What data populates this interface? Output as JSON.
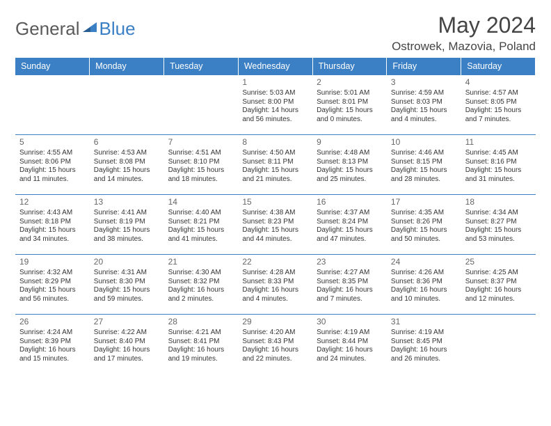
{
  "logo": {
    "word1": "General",
    "word2": "Blue"
  },
  "title": "May 2024",
  "location": "Ostrowek, Mazovia, Poland",
  "colors": {
    "header_bg": "#3b7fc4",
    "header_text": "#ffffff",
    "rule": "#3b7fc4",
    "body_text": "#333333",
    "title_text": "#444444",
    "logo_gray": "#5a5a5a",
    "logo_blue": "#3b7fc4",
    "background": "#ffffff"
  },
  "weekdays": [
    "Sunday",
    "Monday",
    "Tuesday",
    "Wednesday",
    "Thursday",
    "Friday",
    "Saturday"
  ],
  "weeks": [
    [
      null,
      null,
      null,
      {
        "day": "1",
        "sunrise": "Sunrise: 5:03 AM",
        "sunset": "Sunset: 8:00 PM",
        "daylight": "Daylight: 14 hours and 56 minutes."
      },
      {
        "day": "2",
        "sunrise": "Sunrise: 5:01 AM",
        "sunset": "Sunset: 8:01 PM",
        "daylight": "Daylight: 15 hours and 0 minutes."
      },
      {
        "day": "3",
        "sunrise": "Sunrise: 4:59 AM",
        "sunset": "Sunset: 8:03 PM",
        "daylight": "Daylight: 15 hours and 4 minutes."
      },
      {
        "day": "4",
        "sunrise": "Sunrise: 4:57 AM",
        "sunset": "Sunset: 8:05 PM",
        "daylight": "Daylight: 15 hours and 7 minutes."
      }
    ],
    [
      {
        "day": "5",
        "sunrise": "Sunrise: 4:55 AM",
        "sunset": "Sunset: 8:06 PM",
        "daylight": "Daylight: 15 hours and 11 minutes."
      },
      {
        "day": "6",
        "sunrise": "Sunrise: 4:53 AM",
        "sunset": "Sunset: 8:08 PM",
        "daylight": "Daylight: 15 hours and 14 minutes."
      },
      {
        "day": "7",
        "sunrise": "Sunrise: 4:51 AM",
        "sunset": "Sunset: 8:10 PM",
        "daylight": "Daylight: 15 hours and 18 minutes."
      },
      {
        "day": "8",
        "sunrise": "Sunrise: 4:50 AM",
        "sunset": "Sunset: 8:11 PM",
        "daylight": "Daylight: 15 hours and 21 minutes."
      },
      {
        "day": "9",
        "sunrise": "Sunrise: 4:48 AM",
        "sunset": "Sunset: 8:13 PM",
        "daylight": "Daylight: 15 hours and 25 minutes."
      },
      {
        "day": "10",
        "sunrise": "Sunrise: 4:46 AM",
        "sunset": "Sunset: 8:15 PM",
        "daylight": "Daylight: 15 hours and 28 minutes."
      },
      {
        "day": "11",
        "sunrise": "Sunrise: 4:45 AM",
        "sunset": "Sunset: 8:16 PM",
        "daylight": "Daylight: 15 hours and 31 minutes."
      }
    ],
    [
      {
        "day": "12",
        "sunrise": "Sunrise: 4:43 AM",
        "sunset": "Sunset: 8:18 PM",
        "daylight": "Daylight: 15 hours and 34 minutes."
      },
      {
        "day": "13",
        "sunrise": "Sunrise: 4:41 AM",
        "sunset": "Sunset: 8:19 PM",
        "daylight": "Daylight: 15 hours and 38 minutes."
      },
      {
        "day": "14",
        "sunrise": "Sunrise: 4:40 AM",
        "sunset": "Sunset: 8:21 PM",
        "daylight": "Daylight: 15 hours and 41 minutes."
      },
      {
        "day": "15",
        "sunrise": "Sunrise: 4:38 AM",
        "sunset": "Sunset: 8:23 PM",
        "daylight": "Daylight: 15 hours and 44 minutes."
      },
      {
        "day": "16",
        "sunrise": "Sunrise: 4:37 AM",
        "sunset": "Sunset: 8:24 PM",
        "daylight": "Daylight: 15 hours and 47 minutes."
      },
      {
        "day": "17",
        "sunrise": "Sunrise: 4:35 AM",
        "sunset": "Sunset: 8:26 PM",
        "daylight": "Daylight: 15 hours and 50 minutes."
      },
      {
        "day": "18",
        "sunrise": "Sunrise: 4:34 AM",
        "sunset": "Sunset: 8:27 PM",
        "daylight": "Daylight: 15 hours and 53 minutes."
      }
    ],
    [
      {
        "day": "19",
        "sunrise": "Sunrise: 4:32 AM",
        "sunset": "Sunset: 8:29 PM",
        "daylight": "Daylight: 15 hours and 56 minutes."
      },
      {
        "day": "20",
        "sunrise": "Sunrise: 4:31 AM",
        "sunset": "Sunset: 8:30 PM",
        "daylight": "Daylight: 15 hours and 59 minutes."
      },
      {
        "day": "21",
        "sunrise": "Sunrise: 4:30 AM",
        "sunset": "Sunset: 8:32 PM",
        "daylight": "Daylight: 16 hours and 2 minutes."
      },
      {
        "day": "22",
        "sunrise": "Sunrise: 4:28 AM",
        "sunset": "Sunset: 8:33 PM",
        "daylight": "Daylight: 16 hours and 4 minutes."
      },
      {
        "day": "23",
        "sunrise": "Sunrise: 4:27 AM",
        "sunset": "Sunset: 8:35 PM",
        "daylight": "Daylight: 16 hours and 7 minutes."
      },
      {
        "day": "24",
        "sunrise": "Sunrise: 4:26 AM",
        "sunset": "Sunset: 8:36 PM",
        "daylight": "Daylight: 16 hours and 10 minutes."
      },
      {
        "day": "25",
        "sunrise": "Sunrise: 4:25 AM",
        "sunset": "Sunset: 8:37 PM",
        "daylight": "Daylight: 16 hours and 12 minutes."
      }
    ],
    [
      {
        "day": "26",
        "sunrise": "Sunrise: 4:24 AM",
        "sunset": "Sunset: 8:39 PM",
        "daylight": "Daylight: 16 hours and 15 minutes."
      },
      {
        "day": "27",
        "sunrise": "Sunrise: 4:22 AM",
        "sunset": "Sunset: 8:40 PM",
        "daylight": "Daylight: 16 hours and 17 minutes."
      },
      {
        "day": "28",
        "sunrise": "Sunrise: 4:21 AM",
        "sunset": "Sunset: 8:41 PM",
        "daylight": "Daylight: 16 hours and 19 minutes."
      },
      {
        "day": "29",
        "sunrise": "Sunrise: 4:20 AM",
        "sunset": "Sunset: 8:43 PM",
        "daylight": "Daylight: 16 hours and 22 minutes."
      },
      {
        "day": "30",
        "sunrise": "Sunrise: 4:19 AM",
        "sunset": "Sunset: 8:44 PM",
        "daylight": "Daylight: 16 hours and 24 minutes."
      },
      {
        "day": "31",
        "sunrise": "Sunrise: 4:19 AM",
        "sunset": "Sunset: 8:45 PM",
        "daylight": "Daylight: 16 hours and 26 minutes."
      },
      null
    ]
  ]
}
